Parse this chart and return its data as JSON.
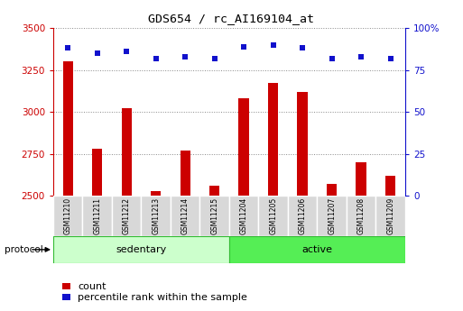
{
  "title": "GDS654 / rc_AI169104_at",
  "samples": [
    "GSM11210",
    "GSM11211",
    "GSM11212",
    "GSM11213",
    "GSM11214",
    "GSM11215",
    "GSM11204",
    "GSM11205",
    "GSM11206",
    "GSM11207",
    "GSM11208",
    "GSM11209"
  ],
  "count_values": [
    3300,
    2780,
    3020,
    2530,
    2770,
    2560,
    3080,
    3175,
    3120,
    2570,
    2700,
    2620
  ],
  "percentile_values": [
    88,
    85,
    86,
    82,
    83,
    82,
    89,
    90,
    88,
    82,
    83,
    82
  ],
  "groups": [
    {
      "label": "sedentary",
      "start": 0,
      "end": 6
    },
    {
      "label": "active",
      "start": 6,
      "end": 12
    }
  ],
  "protocol_label": "protocol",
  "ylim_left": [
    2500,
    3500
  ],
  "ylim_right": [
    0,
    100
  ],
  "yticks_left": [
    2500,
    2750,
    3000,
    3250,
    3500
  ],
  "yticks_right": [
    0,
    25,
    50,
    75,
    100
  ],
  "bar_color": "#cc0000",
  "dot_color": "#1111cc",
  "bar_bottom": 2500,
  "right_axis_color": "#1111cc",
  "left_axis_color": "#cc0000",
  "group_bg_sedentary": "#ccffcc",
  "group_bg_active": "#55ee55",
  "group_border_color": "#33bb33",
  "sample_bg": "#d8d8d8",
  "legend_count_label": "count",
  "legend_percentile_label": "percentile rank within the sample",
  "fig_width": 5.13,
  "fig_height": 3.45,
  "dpi": 100
}
